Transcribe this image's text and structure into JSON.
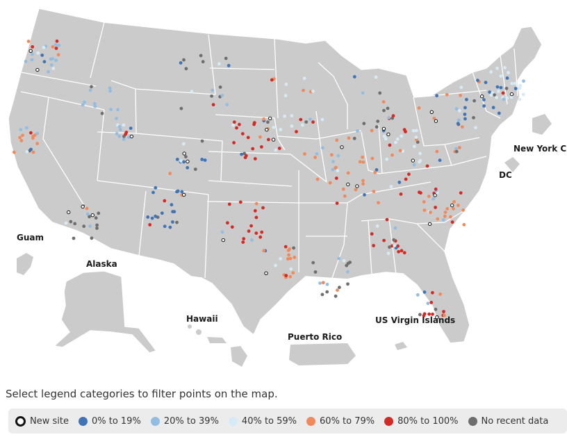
{
  "map": {
    "territory_labels": {
      "guam": "Guam",
      "alaska": "Alaska",
      "hawaii": "Hawaii",
      "puerto_rico": "Puerto Rico",
      "usvi": "US Virgin Islands",
      "new_york_city": "New York Ci",
      "dc": "DC"
    },
    "colors": {
      "land": "#cbcbcb",
      "border": "#ffffff",
      "cat_0_19": "#3f74b6",
      "cat_20_39": "#93bde0",
      "cat_40_59": "#d6ebf5",
      "cat_60_79": "#f2895a",
      "cat_80_100": "#d42a25",
      "cat_no_data": "#6e6e6e",
      "cat_new": "#111111"
    }
  },
  "instructions": "Select legend categories to filter points on the map.",
  "legend": [
    {
      "key": "new",
      "label": "New site",
      "color": "#111111"
    },
    {
      "key": "c0",
      "label": "0% to 19%",
      "color": "#3f74b6"
    },
    {
      "key": "c1",
      "label": "20% to 39%",
      "color": "#93bde0"
    },
    {
      "key": "c2",
      "label": "40% to 59%",
      "color": "#d6ebf5"
    },
    {
      "key": "c3",
      "label": "60% to 79%",
      "color": "#f2895a"
    },
    {
      "key": "c4",
      "label": "80% to 100%",
      "color": "#d42a25"
    },
    {
      "key": "nd",
      "label": "No recent data",
      "color": "#6e6e6e"
    }
  ]
}
